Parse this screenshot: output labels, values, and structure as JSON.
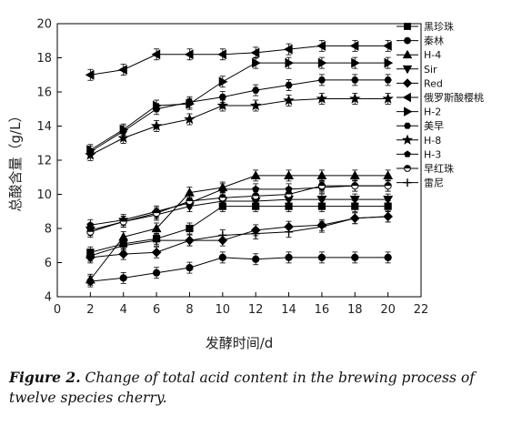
{
  "caption": {
    "label": "Figure 2.",
    "text": " Change of total acid content in the brewing process of twelve species cherry."
  },
  "chart_data": {
    "type": "line",
    "xlabel": "发酵时间/d",
    "ylabel": "总酸含量（g/L）",
    "xlim": [
      0,
      22
    ],
    "ylim": [
      4,
      20
    ],
    "xticks": [
      0,
      2,
      4,
      6,
      8,
      10,
      12,
      14,
      16,
      18,
      20,
      22
    ],
    "yticks": [
      4,
      6,
      8,
      10,
      12,
      14,
      16,
      18,
      20
    ],
    "x": [
      2,
      4,
      6,
      8,
      10,
      12,
      14,
      16,
      18,
      20
    ],
    "legend_position": "top-right",
    "series": [
      {
        "name": "黑珍珠",
        "marker": "square",
        "values": [
          6.6,
          7.1,
          7.4,
          8.0,
          9.3,
          9.3,
          9.3,
          9.3,
          9.3,
          9.3
        ]
      },
      {
        "name": "秦林",
        "marker": "circle",
        "values": [
          4.9,
          5.1,
          5.4,
          5.7,
          6.3,
          6.2,
          6.3,
          6.3,
          6.3,
          6.3
        ]
      },
      {
        "name": "H-4",
        "marker": "triangle-up",
        "values": [
          5.0,
          7.5,
          8.0,
          10.1,
          10.4,
          11.1,
          11.1,
          11.1,
          11.1,
          11.1
        ]
      },
      {
        "name": "Sir",
        "marker": "triangle-down",
        "values": [
          7.9,
          8.4,
          8.8,
          9.3,
          9.6,
          9.6,
          9.7,
          9.7,
          9.7,
          9.7
        ]
      },
      {
        "name": "Red",
        "marker": "diamond",
        "values": [
          6.3,
          6.5,
          6.6,
          7.3,
          7.3,
          7.9,
          8.1,
          8.2,
          8.6,
          8.7
        ]
      },
      {
        "name": "俄罗斯酸樱桃",
        "marker": "triangle-left",
        "values": [
          17.0,
          17.3,
          18.2,
          18.2,
          18.2,
          18.3,
          18.5,
          18.7,
          18.7,
          18.7
        ]
      },
      {
        "name": "H-2",
        "marker": "triangle-right",
        "values": [
          12.6,
          13.8,
          15.2,
          15.3,
          16.6,
          17.7,
          17.7,
          17.7,
          17.7,
          17.7
        ]
      },
      {
        "name": "美早",
        "marker": "hexagon",
        "values": [
          12.5,
          13.7,
          15.0,
          15.4,
          15.7,
          16.1,
          16.4,
          16.7,
          16.7,
          16.7
        ]
      },
      {
        "name": "H-8",
        "marker": "star",
        "values": [
          12.3,
          13.3,
          14.0,
          14.4,
          15.2,
          15.2,
          15.5,
          15.6,
          15.6,
          15.6
        ]
      },
      {
        "name": "H-3",
        "marker": "pentagon",
        "values": [
          8.2,
          8.5,
          9.0,
          9.5,
          10.3,
          10.3,
          10.3,
          10.4,
          10.5,
          10.5
        ]
      },
      {
        "name": "早红珠",
        "marker": "half-circle",
        "values": [
          7.8,
          8.4,
          8.9,
          9.6,
          9.8,
          9.9,
          10.0,
          10.5,
          10.5,
          10.5
        ]
      },
      {
        "name": "雷尼",
        "marker": "plus",
        "values": [
          6.4,
          7.0,
          7.3,
          7.3,
          7.6,
          7.7,
          7.8,
          8.1,
          8.6,
          8.7
        ]
      }
    ]
  }
}
